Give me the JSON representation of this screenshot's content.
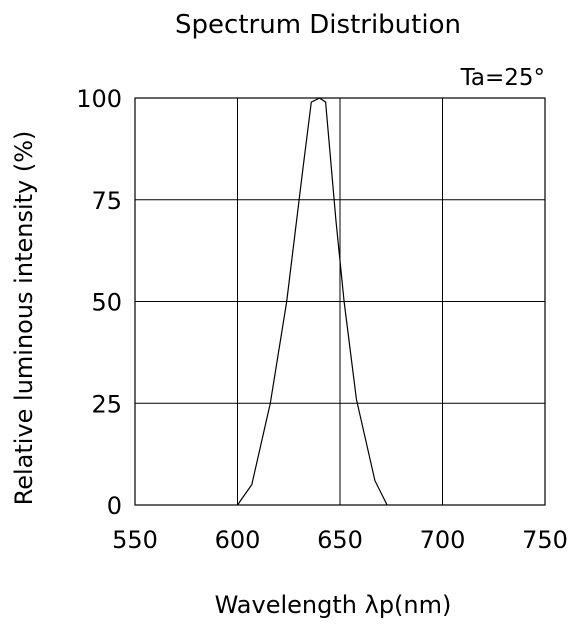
{
  "chart_data": {
    "type": "line",
    "title": "Spectrum Distribution",
    "annotation": "Ta=25°",
    "xlabel": "Wavelength λp(nm)",
    "ylabel": "Relative luminous intensity (%)",
    "xlim": [
      550,
      750
    ],
    "ylim": [
      0,
      100
    ],
    "x_ticks": [
      "550",
      "600",
      "650",
      "700",
      "750"
    ],
    "y_ticks": [
      "0",
      "25",
      "50",
      "75",
      "100"
    ],
    "grid": true,
    "legend": "none",
    "line_color": "#000000",
    "series": [
      {
        "x": [
          600,
          607,
          616,
          624,
          632,
          636,
          640,
          643,
          648,
          652,
          658,
          667,
          673
        ],
        "y": [
          0,
          5,
          25,
          50,
          83,
          99,
          100,
          99,
          70,
          50,
          26,
          6,
          0
        ]
      }
    ]
  }
}
